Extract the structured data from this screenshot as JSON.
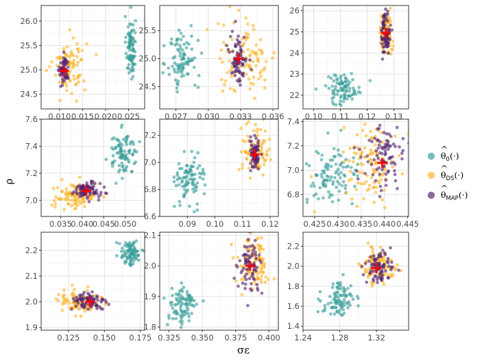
{
  "chart_data": {
    "type": "scatter",
    "xlabel": "σε",
    "ylabel": "ρ",
    "grid": true,
    "legend_position": "right",
    "legend": [
      {
        "key": "t0",
        "hat": "^",
        "base": "θ",
        "sub": "0",
        "suffix": "(·)",
        "color": "#3a9e9a"
      },
      {
        "key": "ds",
        "hat": "^",
        "base": "θ",
        "sub": "DS",
        "suffix": "(·)",
        "color": "#fbb42a"
      },
      {
        "key": "map",
        "hat": "^",
        "base": "θ",
        "sub": "MAP",
        "suffix": "(·)",
        "color": "#55246f"
      }
    ],
    "truth_marker": {
      "shape": "plus",
      "color": "#ff0000"
    },
    "panels": [
      {
        "row": 0,
        "col": 0,
        "xlim": [
          0.006,
          0.0285
        ],
        "ylim": [
          24.2,
          26.32
        ],
        "xticks": [
          0.01,
          0.015,
          0.02,
          0.025
        ],
        "xtick_labels": [
          "0.010",
          "0.015",
          "0.020",
          "0.025"
        ],
        "yticks": [
          24.5,
          25.0,
          25.5,
          26.0
        ],
        "ytick_labels": [
          "24.5",
          "25.0",
          "25.5",
          "26.0"
        ],
        "clusters": [
          {
            "group": "t0",
            "cx": 0.0255,
            "cy": 25.45,
            "sx": 0.0005,
            "sy": 0.33,
            "n": 90
          },
          {
            "group": "ds",
            "cx": 0.0122,
            "cy": 25.1,
            "sx": 0.0018,
            "sy": 0.28,
            "n": 90
          },
          {
            "group": "map",
            "cx": 0.011,
            "cy": 24.98,
            "sx": 0.0005,
            "sy": 0.14,
            "n": 70
          }
        ],
        "truth": [
          0.011,
          24.98
        ]
      },
      {
        "row": 0,
        "col": 1,
        "xlim": [
          0.0255,
          0.0365
        ],
        "ylim": [
          24.1,
          25.95
        ],
        "xticks": [
          0.027,
          0.03,
          0.033,
          0.036
        ],
        "xtick_labels": [
          "0.027",
          "0.030",
          "0.033",
          "0.036"
        ],
        "yticks": [
          24.5,
          25.0,
          25.5
        ],
        "ytick_labels": [
          "24.5",
          "25.0",
          "25.5"
        ],
        "clusters": [
          {
            "group": "t0",
            "cx": 0.0276,
            "cy": 25.0,
            "sx": 0.0007,
            "sy": 0.3,
            "n": 90
          },
          {
            "group": "ds",
            "cx": 0.0335,
            "cy": 25.0,
            "sx": 0.0014,
            "sy": 0.33,
            "n": 100
          },
          {
            "group": "map",
            "cx": 0.0328,
            "cy": 25.0,
            "sx": 0.0004,
            "sy": 0.22,
            "n": 80
          }
        ],
        "truth": [
          0.0328,
          25.0
        ]
      },
      {
        "row": 0,
        "col": 2,
        "xlim": [
          0.096,
          0.1355
        ],
        "ylim": [
          21.35,
          26.25
        ],
        "xticks": [
          0.1,
          0.11,
          0.12,
          0.13
        ],
        "xtick_labels": [
          "0.10",
          "0.11",
          "0.12",
          "0.13"
        ],
        "yticks": [
          22,
          23,
          24,
          25,
          26
        ],
        "ytick_labels": [
          "22",
          "23",
          "24",
          "25",
          "26"
        ],
        "clusters": [
          {
            "group": "t0",
            "cx": 0.111,
            "cy": 22.3,
            "sx": 0.0035,
            "sy": 0.38,
            "n": 90
          },
          {
            "group": "ds",
            "cx": 0.127,
            "cy": 24.9,
            "sx": 0.0012,
            "sy": 0.48,
            "n": 90
          },
          {
            "group": "map",
            "cx": 0.127,
            "cy": 24.95,
            "sx": 0.0008,
            "sy": 0.5,
            "n": 80
          }
        ],
        "truth": [
          0.127,
          24.95
        ]
      },
      {
        "row": 1,
        "col": 0,
        "xlim": [
          0.0305,
          0.0545
        ],
        "ylim": [
          6.88,
          7.6
        ],
        "xticks": [
          0.035,
          0.04,
          0.045,
          0.05
        ],
        "xtick_labels": [
          "0.035",
          "0.040",
          "0.045",
          "0.050"
        ],
        "yticks": [
          7.0,
          7.2,
          7.4,
          7.6
        ],
        "ytick_labels": [
          "7.0",
          "7.2",
          "7.4",
          "7.6"
        ],
        "clusters": [
          {
            "group": "t0",
            "cx": 0.0495,
            "cy": 7.35,
            "sx": 0.0017,
            "sy": 0.08,
            "n": 90
          },
          {
            "group": "ds",
            "cx": 0.0385,
            "cy": 7.03,
            "sx": 0.0025,
            "sy": 0.05,
            "n": 100
          },
          {
            "group": "map",
            "cx": 0.041,
            "cy": 7.07,
            "sx": 0.0016,
            "sy": 0.03,
            "n": 80
          }
        ],
        "truth": [
          0.041,
          7.07
        ]
      },
      {
        "row": 1,
        "col": 1,
        "xlim": [
          0.08,
          0.123
        ],
        "ylim": [
          6.6,
          7.32
        ],
        "xticks": [
          0.09,
          0.1,
          0.11,
          0.12
        ],
        "xtick_labels": [
          "0.09",
          "0.10",
          "0.11",
          "0.12"
        ],
        "yticks": [
          6.6,
          6.8,
          7.0,
          7.2
        ],
        "ytick_labels": [
          "6.6",
          "6.8",
          "7.0",
          "7.2"
        ],
        "clusters": [
          {
            "group": "t0",
            "cx": 0.091,
            "cy": 6.88,
            "sx": 0.0026,
            "sy": 0.09,
            "n": 90
          },
          {
            "group": "ds",
            "cx": 0.115,
            "cy": 7.1,
            "sx": 0.0025,
            "sy": 0.09,
            "n": 90
          },
          {
            "group": "map",
            "cx": 0.1145,
            "cy": 7.06,
            "sx": 0.0009,
            "sy": 0.06,
            "n": 70
          }
        ],
        "truth": [
          0.1145,
          7.06
        ]
      },
      {
        "row": 1,
        "col": 2,
        "xlim": [
          0.4225,
          0.4452
        ],
        "ylim": [
          6.62,
          7.42
        ],
        "xticks": [
          0.425,
          0.43,
          0.435,
          0.44,
          0.445
        ],
        "xtick_labels": [
          "0.425",
          "0.430",
          "0.435",
          "0.440",
          "0.445"
        ],
        "yticks": [
          6.8,
          7.0,
          7.2,
          7.4
        ],
        "ytick_labels": [
          "6.8",
          "7.0",
          "7.2",
          "7.4"
        ],
        "clusters": [
          {
            "group": "t0",
            "cx": 0.4288,
            "cy": 6.93,
            "sx": 0.0028,
            "sy": 0.12,
            "n": 100
          },
          {
            "group": "ds",
            "cx": 0.4375,
            "cy": 7.08,
            "sx": 0.0032,
            "sy": 0.15,
            "n": 110
          },
          {
            "group": "map",
            "cx": 0.4398,
            "cy": 7.1,
            "sx": 0.0024,
            "sy": 0.13,
            "n": 90
          }
        ],
        "truth": [
          0.4395,
          7.06
        ]
      },
      {
        "row": 2,
        "col": 0,
        "xlim": [
          0.106,
          0.178
        ],
        "ylim": [
          1.89,
          2.27
        ],
        "xticks": [
          0.125,
          0.15,
          0.175
        ],
        "xtick_labels": [
          "0.125",
          "0.150",
          "0.175"
        ],
        "yticks": [
          1.9,
          2.0,
          2.1,
          2.2
        ],
        "ytick_labels": [
          "1.9",
          "2.0",
          "2.1",
          "2.2"
        ],
        "clusters": [
          {
            "group": "t0",
            "cx": 0.168,
            "cy": 2.19,
            "sx": 0.0035,
            "sy": 0.025,
            "n": 90
          },
          {
            "group": "ds",
            "cx": 0.133,
            "cy": 2.0,
            "sx": 0.009,
            "sy": 0.025,
            "n": 100
          },
          {
            "group": "map",
            "cx": 0.139,
            "cy": 2.0,
            "sx": 0.006,
            "sy": 0.018,
            "n": 80
          }
        ],
        "truth": [
          0.14,
          2.0
        ]
      },
      {
        "row": 2,
        "col": 1,
        "xlim": [
          0.318,
          0.407
        ],
        "ylim": [
          1.79,
          2.11
        ],
        "xticks": [
          0.325,
          0.35,
          0.375,
          0.4
        ],
        "xtick_labels": [
          "0.325",
          "0.350",
          "0.375",
          "0.400"
        ],
        "yticks": [
          1.8,
          1.9,
          2.0,
          2.1
        ],
        "ytick_labels": [
          "1.8",
          "1.9",
          "2.0",
          "2.1"
        ],
        "clusters": [
          {
            "group": "t0",
            "cx": 0.335,
            "cy": 1.87,
            "sx": 0.006,
            "sy": 0.035,
            "n": 90
          },
          {
            "group": "ds",
            "cx": 0.388,
            "cy": 2.01,
            "sx": 0.006,
            "sy": 0.045,
            "n": 100
          },
          {
            "group": "map",
            "cx": 0.386,
            "cy": 2.0,
            "sx": 0.004,
            "sy": 0.04,
            "n": 80
          }
        ],
        "truth": [
          0.386,
          2.0
        ]
      },
      {
        "row": 2,
        "col": 2,
        "xlim": [
          1.24,
          1.355
        ],
        "ylim": [
          1.36,
          2.34
        ],
        "xticks": [
          1.24,
          1.28,
          1.32
        ],
        "xtick_labels": [
          "1.24",
          "1.28",
          "1.32"
        ],
        "yticks": [
          1.4,
          1.6,
          1.8,
          2.0,
          2.2
        ],
        "ytick_labels": [
          "1.4",
          "1.6",
          "1.8",
          "2.0",
          "2.2"
        ],
        "clusters": [
          {
            "group": "t0",
            "cx": 1.279,
            "cy": 1.66,
            "sx": 0.009,
            "sy": 0.09,
            "n": 90
          },
          {
            "group": "ds",
            "cx": 1.324,
            "cy": 2.0,
            "sx": 0.01,
            "sy": 0.09,
            "n": 100
          },
          {
            "group": "map",
            "cx": 1.322,
            "cy": 1.99,
            "sx": 0.007,
            "sy": 0.07,
            "n": 80
          }
        ],
        "truth": [
          1.32,
          1.98
        ]
      }
    ]
  }
}
